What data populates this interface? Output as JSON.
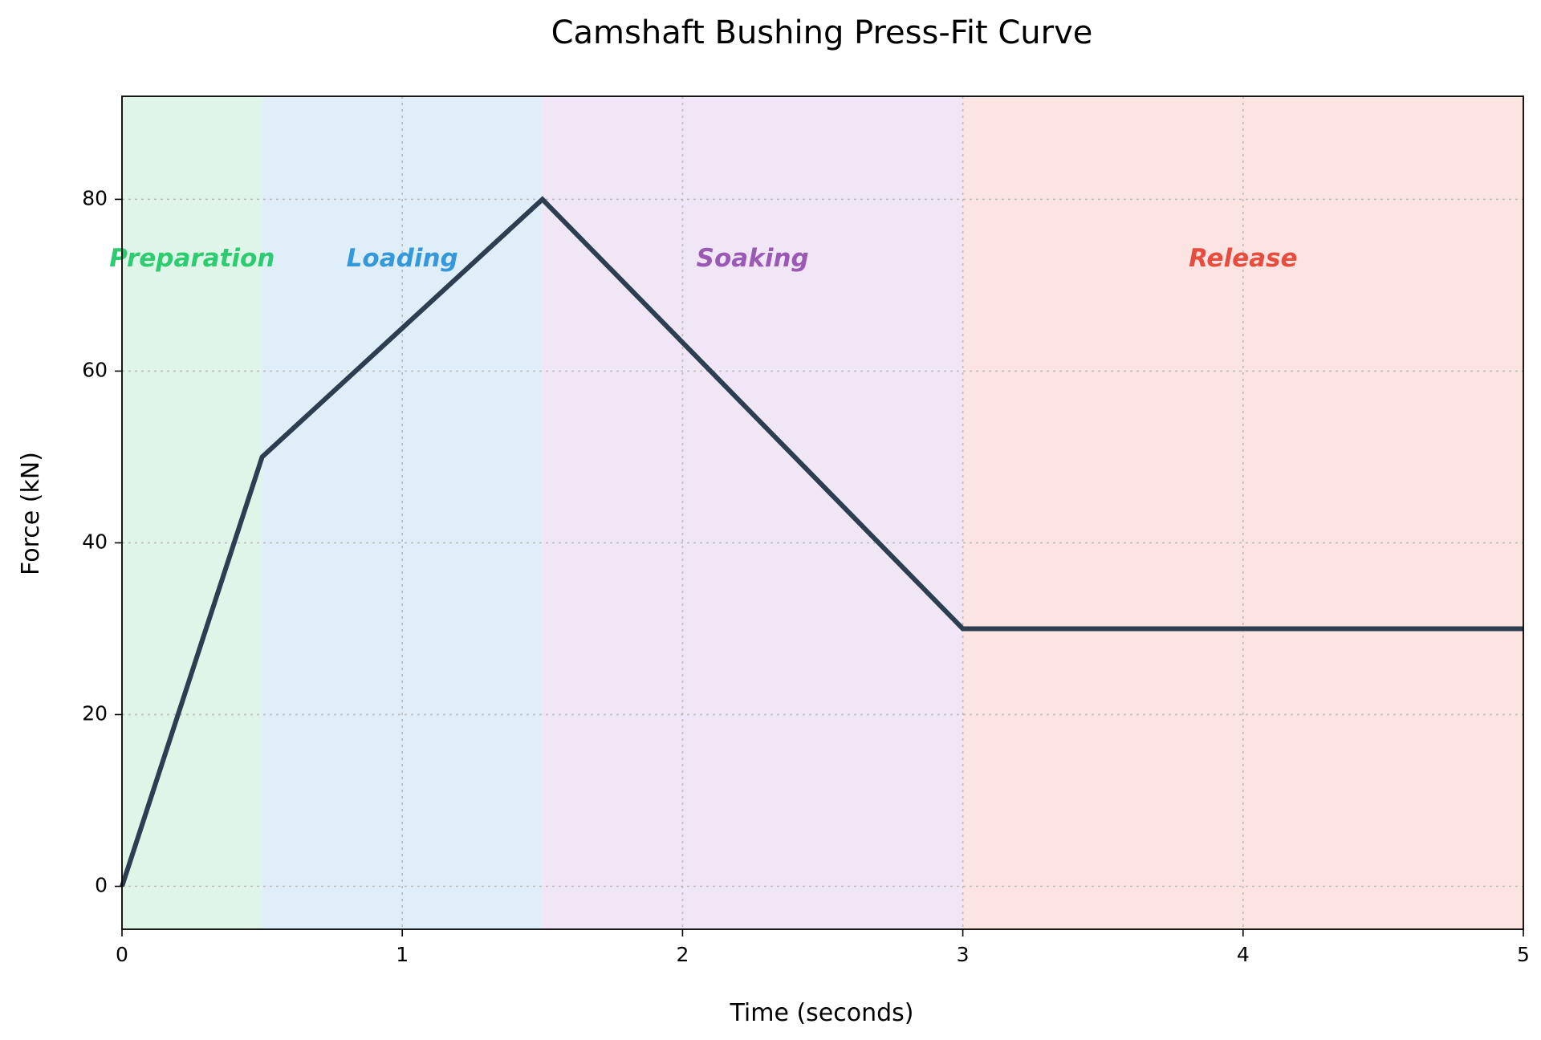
{
  "chart_data": {
    "type": "line",
    "title": "Camshaft Bushing Press-Fit Curve",
    "xlabel": "Time (seconds)",
    "ylabel": "Force (kN)",
    "xlim": [
      0,
      5
    ],
    "ylim": [
      -5,
      92
    ],
    "xticks": [
      0,
      1,
      2,
      3,
      4,
      5
    ],
    "yticks": [
      0,
      20,
      40,
      60,
      80
    ],
    "grid": true,
    "line_color": "#2c3e50",
    "series": [
      {
        "x": [
          0,
          0.5,
          1.5,
          3.0,
          5.0
        ],
        "y": [
          0,
          50,
          80,
          30,
          30
        ]
      }
    ],
    "phases": [
      {
        "label": "Preparation",
        "start": 0,
        "end": 0.5,
        "fill": "#dff5e8",
        "color": "#2ecc71"
      },
      {
        "label": "Loading",
        "start": 0.5,
        "end": 1.5,
        "fill": "#e0eef9",
        "color": "#3498db"
      },
      {
        "label": "Soaking",
        "start": 1.5,
        "end": 3.0,
        "fill": "#f0e6f5",
        "color": "#9b59b6"
      },
      {
        "label": "Release",
        "start": 3.0,
        "end": 5.0,
        "fill": "#fbe4e2",
        "color": "#e74c3c"
      }
    ],
    "phase_label_y": 73
  }
}
